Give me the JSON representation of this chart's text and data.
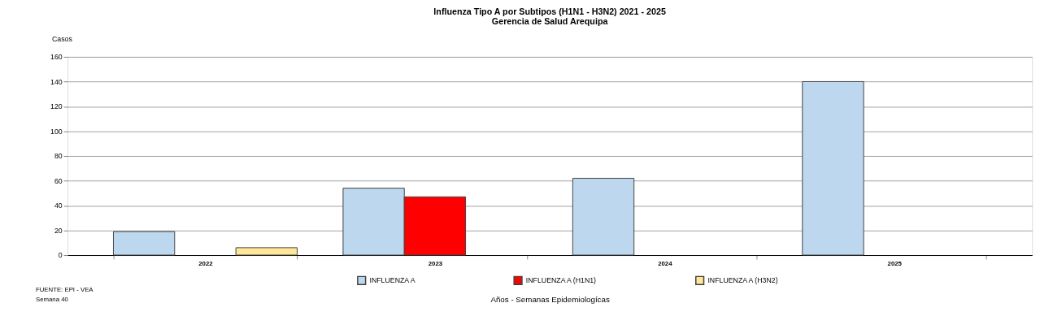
{
  "chart_data": {
    "type": "bar",
    "title": "Influenza Tipo A por Subtipos (H1N1 - H3N2) 2021 - 2025",
    "subtitle": "Gerencia de Salud Arequipa",
    "xlabel": "Años - Semanas Epidemiologícas",
    "ylabel": "Casos",
    "categories": [
      "2022",
      "2023",
      "2024",
      "2025"
    ],
    "series": [
      {
        "name": "INFLUENZA A",
        "color": "#bdd7ee",
        "values": [
          19,
          54,
          62,
          140
        ]
      },
      {
        "name": "INFLUENZA A (H1N1)",
        "color": "#ff0000",
        "values": [
          null,
          47,
          null,
          null
        ]
      },
      {
        "name": "INFLUENZA A (H3N2)",
        "color": "#ffe699",
        "values": [
          6,
          null,
          null,
          null
        ]
      }
    ],
    "ylim": [
      0,
      160
    ],
    "yticks": [
      0,
      20,
      40,
      60,
      80,
      100,
      120,
      140,
      160
    ],
    "grid": "y",
    "legend": "bottom",
    "annotations": [
      "FUENTE: EPI - VEA",
      "Semana 40"
    ]
  }
}
